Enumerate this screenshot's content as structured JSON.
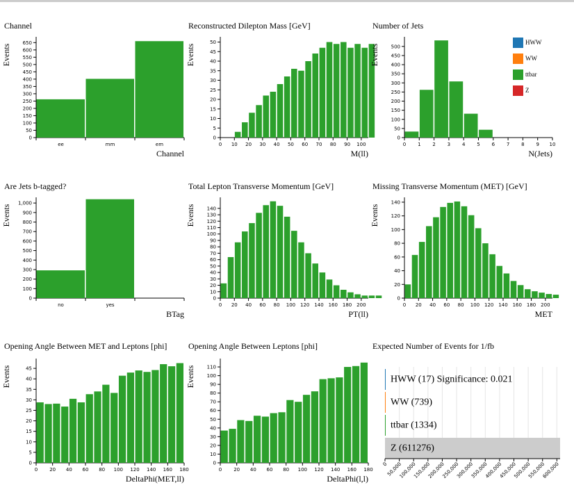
{
  "colors": {
    "HWW": "#1f77b4",
    "WW": "#ff7f0e",
    "ttbar": "#2ca02c",
    "Z": "#d62728",
    "bar": "#2ca02c",
    "summary_bar": "#cccccc",
    "grid": "#e5e5e5"
  },
  "chart_data": [
    {
      "id": "channel",
      "type": "bar",
      "title": "Channel",
      "xlabel": "Channel",
      "ylabel": "Events",
      "categories": [
        "ee",
        "mm",
        "em"
      ],
      "values": [
        262,
        402,
        660
      ],
      "ylim": [
        0,
        680
      ],
      "yticks": [
        0,
        50,
        100,
        150,
        200,
        250,
        300,
        350,
        400,
        450,
        500,
        550,
        600,
        650
      ]
    },
    {
      "id": "mll",
      "type": "bar",
      "title": "Reconstructed Dilepton Mass [GeV]",
      "xlabel": "M(ll)",
      "ylabel": "Events",
      "bin_start": 0,
      "bin_width": 5,
      "values": [
        0,
        0,
        3,
        8,
        13,
        17,
        22,
        24,
        28,
        32,
        36,
        35,
        40,
        44,
        47,
        50,
        49,
        50,
        47,
        49,
        47,
        49
      ],
      "xlim": [
        0,
        105
      ],
      "ylim": [
        0,
        52
      ],
      "xticks": [
        0,
        10,
        20,
        30,
        40,
        50,
        60,
        70,
        80,
        90,
        100
      ],
      "yticks": [
        0,
        5,
        10,
        15,
        20,
        25,
        30,
        35,
        40,
        45,
        50
      ]
    },
    {
      "id": "njets",
      "type": "bar",
      "title": "Number of Jets",
      "xlabel": "N(Jets)",
      "ylabel": "Events",
      "bin_start": 0,
      "bin_width": 1,
      "values": [
        33,
        262,
        533,
        308,
        131,
        43,
        0,
        0,
        0,
        0
      ],
      "xlim": [
        0,
        10
      ],
      "ylim": [
        0,
        545
      ],
      "xticks": [
        0,
        1,
        2,
        3,
        4,
        5,
        6,
        7,
        8,
        9,
        10
      ],
      "yticks": [
        0,
        50,
        100,
        150,
        200,
        250,
        300,
        350,
        400,
        450,
        500
      ],
      "legend": [
        {
          "name": "HWW",
          "color": "#1f77b4"
        },
        {
          "name": "WW",
          "color": "#ff7f0e"
        },
        {
          "name": "ttbar",
          "color": "#2ca02c"
        },
        {
          "name": "Z",
          "color": "#d62728"
        }
      ]
    },
    {
      "id": "btag",
      "type": "bar",
      "title": "Are Jets b-tagged?",
      "xlabel": "BTag",
      "ylabel": "Events",
      "categories": [
        "no",
        "yes",
        ""
      ],
      "values": [
        292,
        1040,
        0
      ],
      "ylim": [
        0,
        1045
      ],
      "yticks": [
        0,
        100,
        200,
        300,
        400,
        500,
        600,
        700,
        800,
        900,
        "1,000"
      ]
    },
    {
      "id": "ptll",
      "type": "bar",
      "title": "Total Lepton Transverse Momentum [GeV]",
      "xlabel": "PT(ll)",
      "ylabel": "Events",
      "bin_start": 0,
      "bin_width": 10,
      "values": [
        23,
        64,
        87,
        104,
        117,
        133,
        145,
        151,
        144,
        127,
        105,
        87,
        70,
        54,
        40,
        29,
        20,
        13,
        9,
        6,
        4,
        4,
        4
      ],
      "xlim": [
        0,
        210
      ],
      "ylim": [
        0,
        155
      ],
      "xticks": [
        0,
        20,
        40,
        60,
        80,
        100,
        120,
        140,
        160,
        180,
        200
      ],
      "yticks": [
        0,
        10,
        20,
        30,
        40,
        50,
        60,
        70,
        80,
        90,
        100,
        110,
        120,
        130,
        140
      ]
    },
    {
      "id": "met",
      "type": "bar",
      "title": "Missing Transverse Momentum (MET) [GeV]",
      "xlabel": "MET",
      "ylabel": "Events",
      "bin_start": 0,
      "bin_width": 10,
      "values": [
        20,
        63,
        82,
        105,
        118,
        133,
        139,
        141,
        134,
        121,
        102,
        80,
        64,
        47,
        36,
        25,
        19,
        13,
        10,
        8,
        6,
        5
      ],
      "xlim": [
        0,
        210
      ],
      "ylim": [
        0,
        145
      ],
      "xticks": [
        0,
        20,
        40,
        60,
        80,
        100,
        120,
        140,
        160,
        180,
        200
      ],
      "yticks": [
        0,
        20,
        40,
        60,
        80,
        100,
        120,
        140
      ]
    },
    {
      "id": "dphi_met",
      "type": "bar",
      "title": "Opening Angle Between MET and Leptons [phi]",
      "xlabel": "DeltaPhi(MET,ll)",
      "ylabel": "Events",
      "bin_start": 0,
      "bin_width": 10,
      "values": [
        28.8,
        28,
        28.2,
        26.8,
        30.5,
        28.8,
        32.7,
        34,
        37.2,
        33.3,
        41.5,
        43,
        44,
        43.3,
        44.2,
        47,
        46,
        47.5
      ],
      "xlim": [
        0,
        180
      ],
      "ylim": [
        0,
        49
      ],
      "xticks": [
        0,
        20,
        40,
        60,
        80,
        100,
        120,
        140,
        160,
        180
      ],
      "yticks": [
        0,
        5,
        10,
        15,
        20,
        25,
        30,
        35,
        40,
        45
      ]
    },
    {
      "id": "dphi_ll",
      "type": "bar",
      "title": "Opening Angle Between Leptons [phi]",
      "xlabel": "DeltaPhi(l,l)",
      "ylabel": "Events",
      "bin_start": 0,
      "bin_width": 10,
      "values": [
        37,
        39,
        49,
        48,
        54,
        53,
        57,
        58,
        72,
        70,
        78,
        82,
        96,
        97,
        98,
        110,
        111,
        115
      ],
      "xlim": [
        0,
        180
      ],
      "ylim": [
        0,
        118
      ],
      "xticks": [
        0,
        20,
        40,
        60,
        80,
        100,
        120,
        140,
        160,
        180
      ],
      "yticks": [
        0,
        10,
        20,
        30,
        40,
        50,
        60,
        70,
        80,
        90,
        100,
        110
      ]
    },
    {
      "id": "expected",
      "type": "bar",
      "orientation": "horizontal",
      "title": "Expected Number of Events for 1/fb",
      "categories": [
        "HWW",
        "WW",
        "ttbar",
        "Z"
      ],
      "values": [
        17,
        739,
        1334,
        611276
      ],
      "labels": [
        "HWW (17) Significance: 0.021",
        "WW (739)",
        "ttbar (1334)",
        "Z (611276)"
      ],
      "xlim": [
        0,
        611276
      ],
      "xticks": [
        0,
        "50,000",
        "100,000",
        "150,000",
        "200,000",
        "250,000",
        "300,000",
        "350,000",
        "400,000",
        "450,000",
        "500,000",
        "550,000",
        "600,000"
      ],
      "bar_colors": [
        "#1f77b4",
        "#ff7f0e",
        "#2ca02c",
        "#cccccc"
      ]
    }
  ]
}
